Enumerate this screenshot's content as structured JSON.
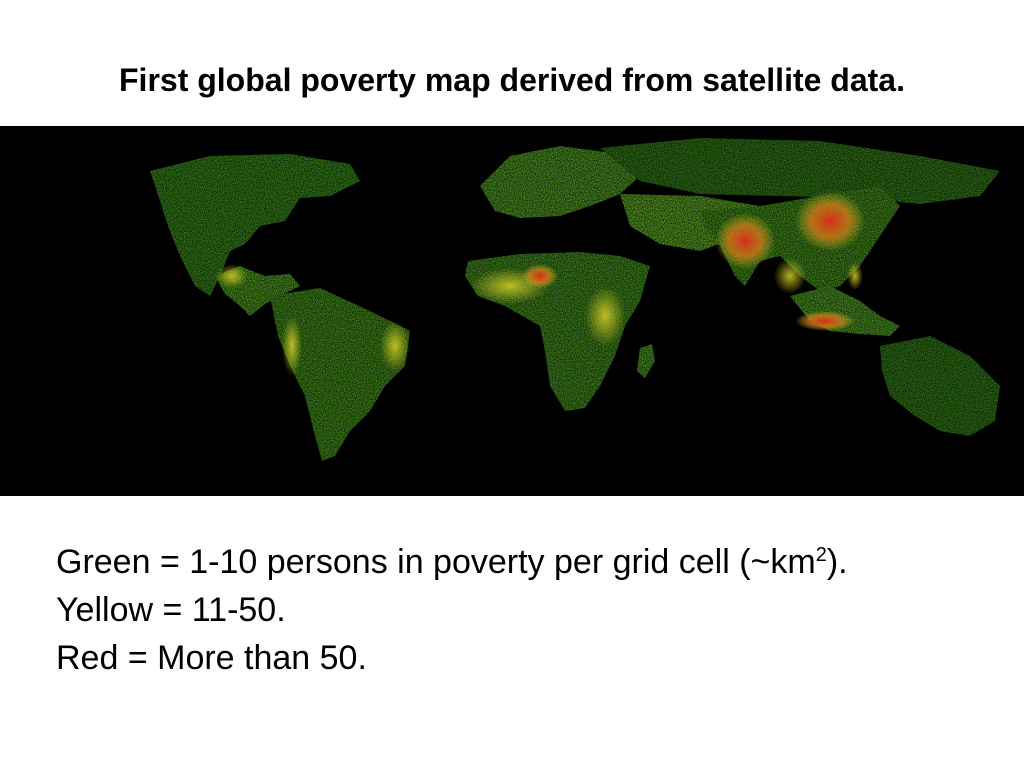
{
  "title": "First global poverty map derived from satellite data.",
  "map": {
    "background": "#000000",
    "palette": {
      "green": "#3f9e1f",
      "bright_green": "#7fd22a",
      "yellow": "#d8cf28",
      "orange": "#e8801a",
      "red": "#e0281c"
    }
  },
  "legend": {
    "green_prefix": "Green = 1-10 persons in poverty per grid cell (~km",
    "green_sup": "2",
    "green_suffix": ").",
    "yellow": "Yellow = 11-50.",
    "red": "Red = More than 50."
  }
}
